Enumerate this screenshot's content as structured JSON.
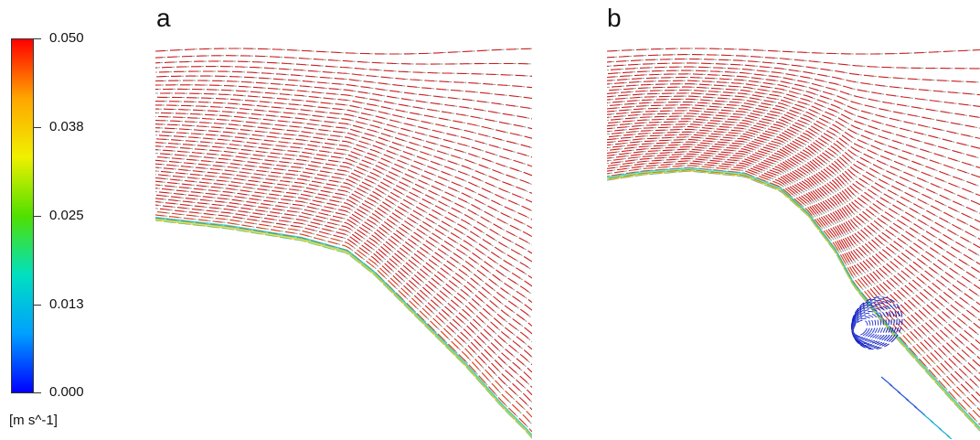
{
  "colorbar": {
    "ticks": [
      "0.050",
      "0.038",
      "0.025",
      "0.013",
      "0.000"
    ],
    "units": "[m s^-1]",
    "colors": [
      "#ff0000",
      "#ffa500",
      "#f0f000",
      "#50e000",
      "#00e0c0",
      "#00a0ff",
      "#0000ff"
    ],
    "range": [
      0.0,
      0.05
    ]
  },
  "panels": [
    {
      "label": "a"
    },
    {
      "label": "b"
    }
  ]
}
